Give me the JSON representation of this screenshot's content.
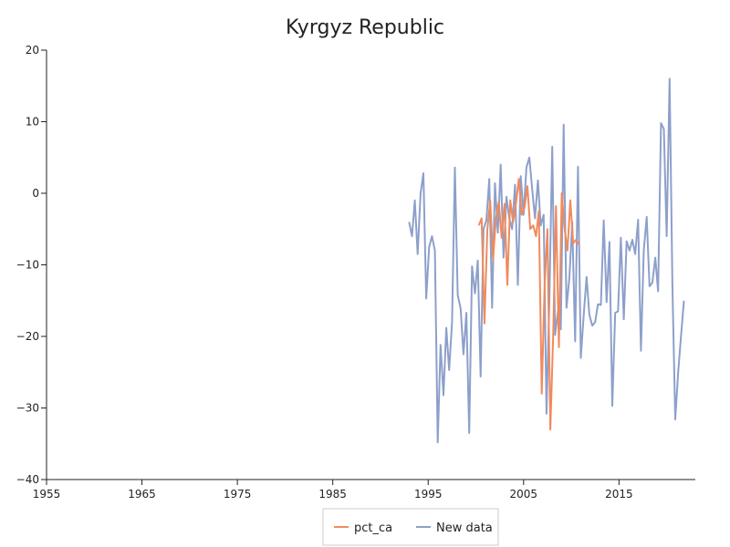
{
  "chart_data": {
    "type": "line",
    "title": "Kyrgyz Republic",
    "xlabel": "",
    "ylabel": "",
    "xlim": [
      1955,
      2023
    ],
    "ylim": [
      -40,
      20
    ],
    "x_ticks": [
      1955,
      1965,
      1975,
      1985,
      1995,
      2005,
      2015
    ],
    "y_ticks": [
      -40,
      -30,
      -20,
      -10,
      0,
      10,
      20
    ],
    "x_tick_labels": [
      "1955",
      "1965",
      "1975",
      "1985",
      "1995",
      "2005",
      "2015"
    ],
    "y_tick_labels": [
      "−40",
      "−30",
      "−20",
      "−10",
      "0",
      "10",
      "20"
    ],
    "grid": false,
    "legend": "bottom-center",
    "series": [
      {
        "name": "pct_ca",
        "color": "#f08a5d",
        "x": [
          2000.3,
          2000.6,
          2000.9,
          2001.2,
          2001.5,
          2001.8,
          2002.1,
          2002.4,
          2002.7,
          2003.0,
          2003.3,
          2003.6,
          2003.9,
          2004.2,
          2004.5,
          2004.8,
          2005.1,
          2005.4,
          2005.7,
          2006.0,
          2006.3,
          2006.6,
          2006.9,
          2007.2,
          2007.5,
          2007.8,
          2008.1,
          2008.4,
          2008.7,
          2009.0,
          2009.3,
          2009.6,
          2009.9,
          2010.2,
          2010.5,
          2010.8
        ],
        "y": [
          -4.5,
          -3.5,
          -18.2,
          -5.0,
          -1.0,
          -9.2,
          -3.5,
          -1.2,
          -6.2,
          -1.5,
          -12.8,
          -1.0,
          -4.0,
          -1.5,
          2.0,
          -3.0,
          -2.0,
          1.0,
          -5.0,
          -4.5,
          -6.0,
          -2.5,
          -28.0,
          -13.0,
          -5.0,
          -33.0,
          -20.0,
          -1.8,
          -21.5,
          0.0,
          -5.0,
          -8.0,
          -1.0,
          -7.0,
          -6.5,
          -7.2
        ]
      },
      {
        "name": "New data",
        "color": "#8da0cb",
        "x": [
          1993.0,
          1993.3,
          1993.6,
          1993.9,
          1994.2,
          1994.5,
          1994.8,
          1995.1,
          1995.4,
          1995.7,
          1996.0,
          1996.3,
          1996.6,
          1996.9,
          1997.2,
          1997.5,
          1997.8,
          1998.1,
          1998.4,
          1998.7,
          1999.0,
          1999.3,
          1999.6,
          1999.9,
          2000.2,
          2000.5,
          2000.8,
          2001.1,
          2001.4,
          2001.7,
          2002.0,
          2002.3,
          2002.6,
          2002.9,
          2003.2,
          2003.5,
          2003.8,
          2004.1,
          2004.4,
          2004.7,
          2005.0,
          2005.3,
          2005.6,
          2005.9,
          2006.2,
          2006.5,
          2006.8,
          2007.1,
          2007.4,
          2007.7,
          2008.0,
          2008.3,
          2008.6,
          2008.9,
          2009.2,
          2009.5,
          2009.8,
          2010.1,
          2010.4,
          2010.7,
          2011.0,
          2011.3,
          2011.6,
          2011.9,
          2012.2,
          2012.5,
          2012.8,
          2013.1,
          2013.4,
          2013.7,
          2014.0,
          2014.3,
          2014.6,
          2014.9,
          2015.2,
          2015.5,
          2015.8,
          2016.1,
          2016.4,
          2016.7,
          2017.0,
          2017.3,
          2017.6,
          2017.9,
          2018.2,
          2018.5,
          2018.8,
          2019.1,
          2019.4,
          2019.7,
          2020.0,
          2020.3,
          2020.6,
          2020.9,
          2021.2,
          2021.5,
          2021.8
        ],
        "y": [
          -4.0,
          -6.0,
          -1.0,
          -8.5,
          0.0,
          2.8,
          -14.7,
          -7.5,
          -6.0,
          -8.0,
          -34.8,
          -21.2,
          -28.2,
          -18.8,
          -24.7,
          -18.0,
          3.6,
          -14.2,
          -16.1,
          -22.5,
          -16.7,
          -33.5,
          -10.2,
          -14.0,
          -9.4,
          -25.6,
          -5.0,
          -3.8,
          2.0,
          -16.0,
          1.4,
          -5.5,
          4.0,
          -9.0,
          -0.5,
          -3.5,
          -5.0,
          1.2,
          -12.8,
          2.4,
          -3.0,
          3.6,
          5.0,
          0.6,
          -3.5,
          1.8,
          -4.5,
          -3.0,
          -30.8,
          -15.2,
          6.5,
          -19.8,
          -16.5,
          -19.0,
          9.6,
          -16.0,
          -11.8,
          -4.0,
          -20.7,
          3.7,
          -23.0,
          -17.0,
          -11.7,
          -17.0,
          -18.5,
          -18.0,
          -15.5,
          -15.6,
          -3.8,
          -15.2,
          -6.8,
          -29.7,
          -16.7,
          -16.5,
          -6.2,
          -17.6,
          -6.7,
          -8.0,
          -6.5,
          -8.5,
          -3.7,
          -22.0,
          -8.0,
          -3.3,
          -13.0,
          -12.5,
          -9.0,
          -13.7,
          9.8,
          9.0,
          -6.0,
          16.0,
          -13.0,
          -31.6,
          -25.0,
          -20.0,
          -15.0
        ]
      }
    ]
  }
}
